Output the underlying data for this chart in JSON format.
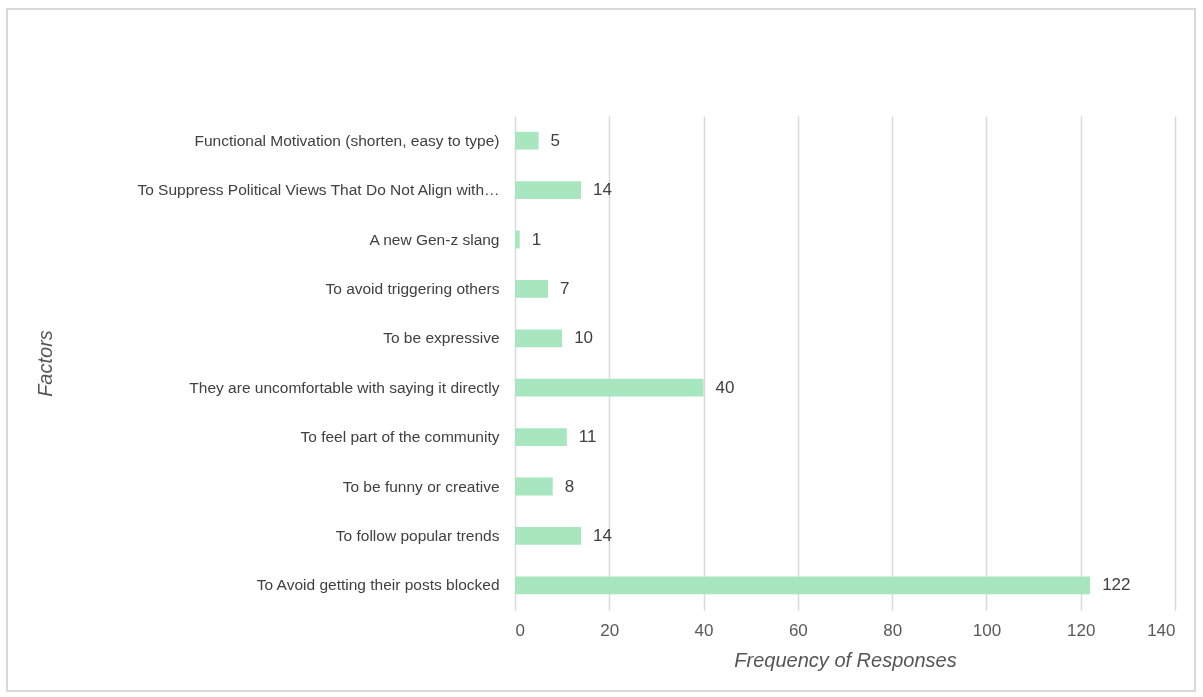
{
  "chart_data": {
    "type": "bar",
    "orientation": "horizontal",
    "xlabel": "Frequency of Responses",
    "ylabel": "Factors",
    "categories": [
      "Functional Motivation (shorten, easy to type)",
      "To Suppress Political Views That Do Not Align with…",
      "A new Gen-z slang",
      "To avoid triggering others",
      "To be expressive",
      "They are uncomfortable with saying it directly",
      "To feel part of the community",
      "To be funny or creative",
      "To follow popular trends",
      "To Avoid getting their posts blocked"
    ],
    "values": [
      5,
      14,
      1,
      7,
      10,
      40,
      11,
      8,
      14,
      122
    ],
    "color": "#a8e6bf",
    "xlim": [
      0,
      140
    ],
    "xticks": [
      0,
      20,
      40,
      60,
      80,
      100,
      120,
      140
    ],
    "grid": "x",
    "data_labels": true
  }
}
